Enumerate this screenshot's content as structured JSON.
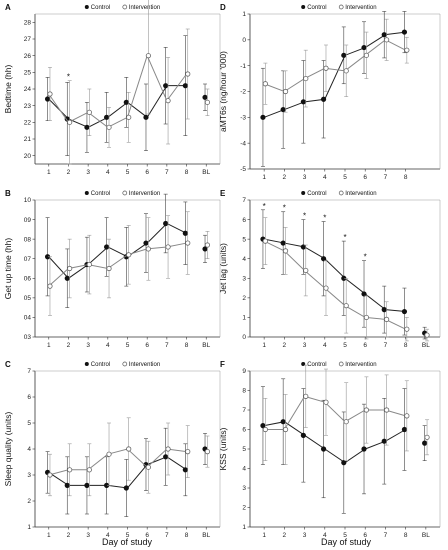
{
  "figure": {
    "x_title_left": "Day of study",
    "x_title_right": "Day of study"
  },
  "chart_data": [
    {
      "panel": "A",
      "type": "line",
      "ylabel": "Bedtime (hh)",
      "ylim": [
        19.5,
        28.5
      ],
      "yticks": [
        "20",
        "21",
        "22",
        "23",
        "24",
        "25",
        "26",
        "27",
        "28"
      ],
      "yvalues": [
        20,
        21,
        22,
        23,
        24,
        25,
        26,
        27,
        28
      ],
      "xticks": [
        "1",
        "2",
        "3",
        "4",
        "5",
        "6",
        "7",
        "8",
        "BL"
      ],
      "legend": {
        "control": "Control",
        "intervention": "Intervention"
      },
      "series": [
        {
          "name": "Control",
          "marker": "filled",
          "values": [
            23.4,
            22.2,
            21.7,
            22.3,
            23.2,
            22.3,
            24.2,
            24.2,
            23.5
          ],
          "err": [
            1.3,
            2.2,
            1.5,
            1.5,
            1.5,
            2.0,
            2.3,
            3.0,
            0.8
          ]
        },
        {
          "name": "Intervention",
          "marker": "open",
          "values": [
            23.7,
            22.0,
            22.6,
            21.7,
            22.3,
            26.0,
            23.3,
            24.9,
            23.2
          ],
          "err": [
            1.6,
            2.5,
            1.4,
            1.2,
            1.5,
            3.5,
            2.6,
            2.7,
            0.8
          ]
        }
      ],
      "annotations": [
        {
          "text": "*",
          "x": 2
        }
      ]
    },
    {
      "panel": "B",
      "type": "line",
      "ylabel": "Get up time (hh)",
      "ylim": [
        3,
        10
      ],
      "yticks": [
        "03",
        "04",
        "05",
        "06",
        "07",
        "08",
        "09",
        "10"
      ],
      "yvalues": [
        3,
        4,
        5,
        6,
        7,
        8,
        9,
        10
      ],
      "xticks": [
        "1",
        "2",
        "3",
        "4",
        "5",
        "6",
        "7",
        "8",
        "BL"
      ],
      "legend": {
        "control": "Control",
        "intervention": "Intervention"
      },
      "series": [
        {
          "name": "Control",
          "marker": "filled",
          "values": [
            7.1,
            6.0,
            6.7,
            7.6,
            7.1,
            7.8,
            8.8,
            8.3,
            7.5
          ],
          "err": [
            2.0,
            1.5,
            1.4,
            1.5,
            1.5,
            1.5,
            1.5,
            1.6,
            0.7
          ]
        },
        {
          "name": "Intervention",
          "marker": "open",
          "values": [
            5.6,
            6.5,
            6.7,
            6.5,
            7.2,
            7.5,
            7.6,
            7.8,
            7.7
          ],
          "err": [
            1.5,
            1.5,
            1.5,
            1.5,
            1.5,
            1.6,
            1.6,
            1.6,
            0.7
          ]
        }
      ],
      "annotations": []
    },
    {
      "panel": "C",
      "type": "line",
      "ylabel": "Sleep quality (units)",
      "ylim": [
        1,
        7
      ],
      "yticks": [
        "1",
        "2",
        "3",
        "4",
        "5",
        "6",
        "7"
      ],
      "yvalues": [
        1,
        2,
        3,
        4,
        5,
        6,
        7
      ],
      "xticks": [
        "1",
        "2",
        "3",
        "4",
        "5",
        "6",
        "7",
        "8",
        "BL"
      ],
      "legend": {
        "control": "Control",
        "intervention": "Intervention"
      },
      "series": [
        {
          "name": "Control",
          "marker": "filled",
          "values": [
            3.1,
            2.6,
            2.6,
            2.6,
            2.5,
            3.4,
            3.7,
            3.2,
            4.0
          ],
          "err": [
            0.8,
            1.1,
            1.1,
            1.1,
            1.1,
            1.0,
            1.1,
            1.0,
            0.6
          ]
        },
        {
          "name": "Intervention",
          "marker": "open",
          "values": [
            3.0,
            3.2,
            3.2,
            3.8,
            4.0,
            3.3,
            4.0,
            3.9,
            3.9
          ],
          "err": [
            0.8,
            1.0,
            1.0,
            1.2,
            1.2,
            1.0,
            1.0,
            1.0,
            0.6
          ]
        }
      ],
      "annotations": []
    },
    {
      "panel": "D",
      "type": "line",
      "ylabel": "aMT6s (ng/hour '000)",
      "ylim": [
        -5,
        1
      ],
      "yticks": [
        "-5",
        "-4",
        "-3",
        "-2",
        "-1",
        "0",
        "1"
      ],
      "yvalues": [
        -5,
        -4,
        -3,
        -2,
        -1,
        0,
        1
      ],
      "xticks": [
        "1",
        "2",
        "3",
        "4",
        "5",
        "6",
        "7",
        "8"
      ],
      "legend": {
        "control": "Control",
        "intervention": "Intervention"
      },
      "series": [
        {
          "name": "Control",
          "marker": "filled",
          "values": [
            -3.0,
            -2.7,
            -2.4,
            -2.3,
            -0.6,
            -0.3,
            0.2,
            0.3
          ],
          "err": [
            1.9,
            1.5,
            1.6,
            1.5,
            1.1,
            1.0,
            0.9,
            0.8
          ]
        },
        {
          "name": "Intervention",
          "marker": "open",
          "values": [
            -1.7,
            -2.0,
            -1.5,
            -1.1,
            -1.2,
            -0.6,
            0.0,
            -0.4
          ],
          "err": [
            0.8,
            0.8,
            1.1,
            0.9,
            1.0,
            0.9,
            0.8,
            0.5
          ]
        }
      ],
      "annotations": []
    },
    {
      "panel": "E",
      "type": "line",
      "ylabel": "Jet lag (units)",
      "ylim": [
        0,
        7
      ],
      "yticks": [
        "0",
        "1",
        "2",
        "3",
        "4",
        "5",
        "6",
        "7"
      ],
      "yvalues": [
        0,
        1,
        2,
        3,
        4,
        5,
        6,
        7
      ],
      "xticks": [
        "1",
        "2",
        "3",
        "4",
        "5",
        "6",
        "7",
        "8",
        "BL"
      ],
      "legend": {
        "control": "Control",
        "intervention": "Intervention"
      },
      "series": [
        {
          "name": "Control",
          "marker": "filled",
          "values": [
            5.0,
            4.8,
            4.6,
            4.0,
            3.0,
            2.2,
            1.4,
            1.3,
            0.2
          ],
          "err": [
            1.5,
            1.6,
            1.4,
            1.9,
            1.9,
            1.7,
            1.2,
            1.2,
            0.3
          ]
        },
        {
          "name": "Intervention",
          "marker": "open",
          "values": [
            4.9,
            4.4,
            3.4,
            2.5,
            1.6,
            1.0,
            0.9,
            0.4,
            0.1
          ],
          "err": [
            1.2,
            1.2,
            1.3,
            1.4,
            1.4,
            1.1,
            0.9,
            0.6,
            0.3
          ]
        }
      ],
      "annotations": [
        {
          "text": "*",
          "x": 1
        },
        {
          "text": "*",
          "x": 2
        },
        {
          "text": "*",
          "x": 3
        },
        {
          "text": "*",
          "x": 4
        },
        {
          "text": "*",
          "x": 5
        },
        {
          "text": "*",
          "x": 6
        }
      ]
    },
    {
      "panel": "F",
      "type": "line",
      "ylabel": "KSS (units)",
      "ylim": [
        1,
        9
      ],
      "yticks": [
        "1",
        "2",
        "3",
        "4",
        "5",
        "6",
        "7",
        "8",
        "9"
      ],
      "yvalues": [
        1,
        2,
        3,
        4,
        5,
        6,
        7,
        8,
        9
      ],
      "xticks": [
        "1",
        "2",
        "3",
        "4",
        "5",
        "6",
        "7",
        "8",
        "BL"
      ],
      "legend": {
        "control": "Control",
        "intervention": "Intervention"
      },
      "series": [
        {
          "name": "Control",
          "marker": "filled",
          "values": [
            6.2,
            6.4,
            5.7,
            5.0,
            4.3,
            5.0,
            5.4,
            6.0,
            5.3
          ],
          "err": [
            2.0,
            2.2,
            2.4,
            2.5,
            2.6,
            2.3,
            2.2,
            2.1,
            0.9
          ]
        },
        {
          "name": "Intervention",
          "marker": "open",
          "values": [
            6.0,
            6.0,
            7.7,
            7.4,
            6.4,
            7.0,
            7.0,
            6.7,
            5.6
          ],
          "err": [
            1.6,
            1.8,
            1.6,
            1.7,
            2.0,
            1.7,
            1.8,
            1.8,
            0.9
          ]
        }
      ],
      "annotations": []
    }
  ]
}
